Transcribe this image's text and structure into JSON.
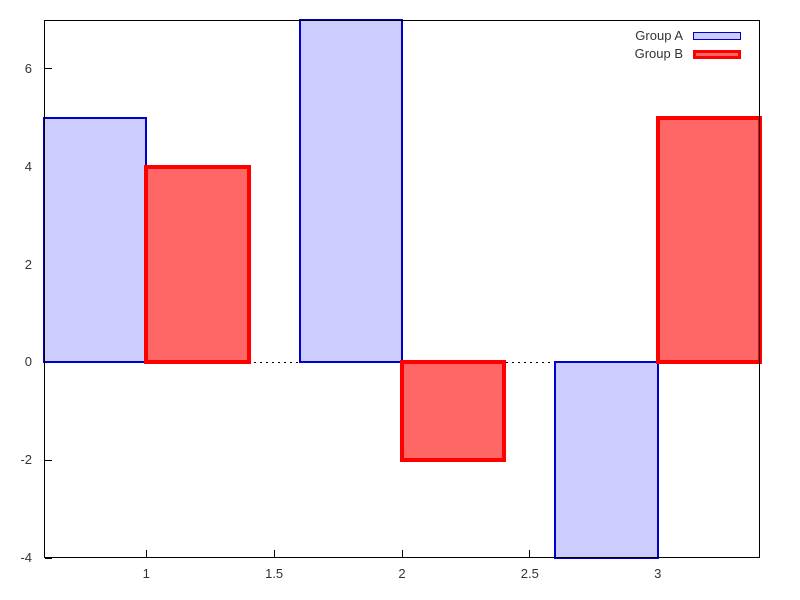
{
  "chart_data": {
    "type": "bar",
    "title": "",
    "xlabel": "",
    "ylabel": "",
    "categories": [
      1,
      2,
      3
    ],
    "series": [
      {
        "name": "Group A",
        "values": [
          5,
          7,
          -4
        ],
        "fill": "#ccccff",
        "border": "#0000cc",
        "offset": -0.4
      },
      {
        "name": "Group B",
        "values": [
          4,
          -2,
          5
        ],
        "fill": "#ff6666",
        "border": "#ff0000",
        "offset": 0
      }
    ],
    "bar_width": 0.4,
    "xlim": [
      0.6,
      3.4
    ],
    "ylim": [
      -4,
      7
    ],
    "x_ticks": [
      1,
      1.5,
      2,
      2.5,
      3
    ],
    "y_ticks": [
      -4,
      -2,
      0,
      2,
      4,
      6
    ],
    "grid": false,
    "zero_line": "dotted",
    "legend_position": "top-right-inside",
    "background": "#ffffff",
    "frame_color": "#000000",
    "text_color": "#333333"
  },
  "legend": {
    "items": [
      "Group A",
      "Group B"
    ]
  }
}
